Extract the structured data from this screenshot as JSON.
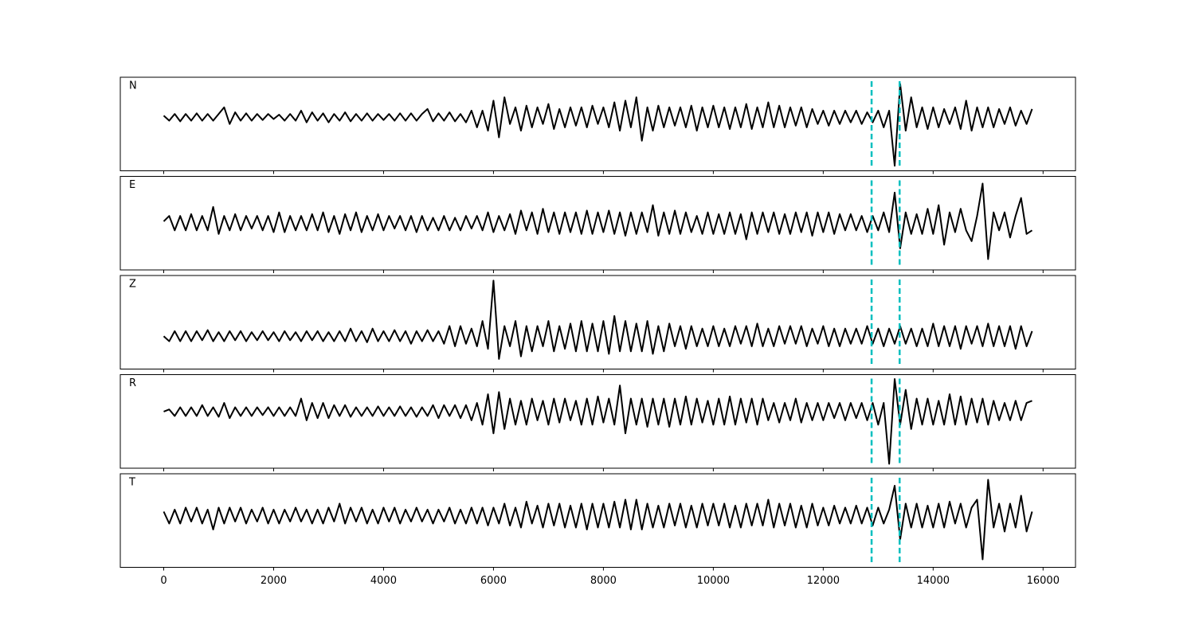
{
  "chart_data": {
    "type": "line",
    "x": [
      0,
      100,
      200,
      300,
      400,
      500,
      600,
      700,
      800,
      900,
      1000,
      1100,
      1200,
      1300,
      1400,
      1500,
      1600,
      1700,
      1800,
      1900,
      2000,
      2100,
      2200,
      2300,
      2400,
      2500,
      2600,
      2700,
      2800,
      2900,
      3000,
      3100,
      3200,
      3300,
      3400,
      3500,
      3600,
      3700,
      3800,
      3900,
      4000,
      4100,
      4200,
      4300,
      4400,
      4500,
      4600,
      4700,
      4800,
      4900,
      5000,
      5100,
      5200,
      5300,
      5400,
      5500,
      5600,
      5700,
      5800,
      5900,
      6000,
      6100,
      6200,
      6300,
      6400,
      6500,
      6600,
      6700,
      6800,
      6900,
      7000,
      7100,
      7200,
      7300,
      7400,
      7500,
      7600,
      7700,
      7800,
      7900,
      8000,
      8100,
      8200,
      8300,
      8400,
      8500,
      8600,
      8700,
      8800,
      8900,
      9000,
      9100,
      9200,
      9300,
      9400,
      9500,
      9600,
      9700,
      9800,
      9900,
      10000,
      10100,
      10200,
      10300,
      10400,
      10500,
      10600,
      10700,
      10800,
      10900,
      11000,
      11100,
      11200,
      11300,
      11400,
      11500,
      11600,
      11700,
      11800,
      11900,
      12000,
      12100,
      12200,
      12300,
      12400,
      12500,
      12600,
      12700,
      12800,
      12900,
      13000,
      13100,
      13200,
      13300,
      13400,
      13500,
      13600,
      13700,
      13800,
      13900,
      14000,
      14100,
      14200,
      14300,
      14400,
      14500,
      14600,
      14700,
      14800,
      14900,
      15000,
      15100,
      15200,
      15300,
      15400,
      15500,
      15600,
      15700,
      15800
    ],
    "xlim": [
      -790,
      16590
    ],
    "xticks": [
      0,
      2000,
      4000,
      6000,
      8000,
      10000,
      12000,
      14000,
      16000
    ],
    "vlines": [
      12880,
      13390
    ],
    "vline_color": "#00bfbf",
    "series": [
      {
        "name": "N",
        "color": "#000000",
        "ylim": [
          -1.6,
          1.2
        ],
        "values": [
          0.05,
          -0.1,
          0.1,
          -0.12,
          0.1,
          -0.1,
          0.12,
          -0.1,
          0.1,
          -0.1,
          0.1,
          0.3,
          -0.2,
          0.15,
          -0.1,
          0.12,
          -0.1,
          0.1,
          -0.08,
          0.1,
          -0.05,
          0.08,
          -0.1,
          0.1,
          -0.1,
          0.2,
          -0.15,
          0.15,
          -0.1,
          0.12,
          -0.15,
          0.1,
          -0.1,
          0.15,
          -0.12,
          0.1,
          -0.1,
          0.12,
          -0.1,
          0.1,
          -0.08,
          0.1,
          -0.1,
          0.12,
          -0.1,
          0.12,
          -0.1,
          0.1,
          0.25,
          -0.12,
          0.12,
          -0.1,
          0.15,
          -0.12,
          0.1,
          -0.15,
          0.2,
          -0.3,
          0.2,
          -0.4,
          0.5,
          -0.6,
          0.6,
          -0.2,
          0.3,
          -0.4,
          0.35,
          -0.3,
          0.3,
          -0.2,
          0.4,
          -0.35,
          0.25,
          -0.3,
          0.3,
          -0.25,
          0.3,
          -0.3,
          0.35,
          -0.2,
          0.3,
          -0.3,
          0.45,
          -0.4,
          0.5,
          -0.3,
          0.6,
          -0.7,
          0.3,
          -0.4,
          0.35,
          -0.3,
          0.3,
          -0.25,
          0.3,
          -0.3,
          0.35,
          -0.4,
          0.3,
          -0.3,
          0.35,
          -0.3,
          0.3,
          -0.35,
          0.3,
          -0.3,
          0.4,
          -0.35,
          0.3,
          -0.3,
          0.45,
          -0.3,
          0.35,
          -0.3,
          0.3,
          -0.25,
          0.3,
          -0.3,
          0.25,
          -0.2,
          0.2,
          -0.25,
          0.2,
          -0.2,
          0.2,
          -0.15,
          0.2,
          -0.2,
          0.15,
          -0.15,
          0.2,
          -0.3,
          0.2,
          -1.45,
          1.0,
          -0.4,
          0.6,
          -0.3,
          0.3,
          -0.35,
          0.3,
          -0.3,
          0.25,
          -0.2,
          0.3,
          -0.35,
          0.5,
          -0.4,
          0.3,
          -0.3,
          0.3,
          -0.3,
          0.25,
          -0.2,
          0.3,
          -0.25,
          0.2,
          -0.2,
          0.25
        ]
      },
      {
        "name": "E",
        "color": "#000000",
        "ylim": [
          -1.3,
          1.3
        ],
        "values": [
          0.05,
          0.2,
          -0.2,
          0.2,
          -0.2,
          0.25,
          -0.2,
          0.2,
          -0.2,
          0.45,
          -0.3,
          0.2,
          -0.2,
          0.25,
          -0.2,
          0.2,
          -0.15,
          0.2,
          -0.2,
          0.2,
          -0.25,
          0.3,
          -0.25,
          0.2,
          -0.2,
          0.2,
          -0.2,
          0.25,
          -0.2,
          0.3,
          -0.25,
          0.2,
          -0.3,
          0.25,
          -0.2,
          0.3,
          -0.25,
          0.2,
          -0.2,
          0.25,
          -0.2,
          0.2,
          -0.15,
          0.2,
          -0.2,
          0.2,
          -0.25,
          0.2,
          -0.2,
          0.15,
          -0.2,
          0.2,
          -0.2,
          0.15,
          -0.2,
          0.2,
          -0.15,
          0.2,
          -0.2,
          0.3,
          -0.25,
          0.2,
          -0.2,
          0.25,
          -0.3,
          0.35,
          -0.2,
          0.3,
          -0.3,
          0.4,
          -0.25,
          0.3,
          -0.3,
          0.3,
          -0.25,
          0.3,
          -0.3,
          0.35,
          -0.3,
          0.3,
          -0.25,
          0.35,
          -0.3,
          0.3,
          -0.35,
          0.3,
          -0.3,
          0.3,
          -0.25,
          0.5,
          -0.35,
          0.3,
          -0.3,
          0.35,
          -0.3,
          0.3,
          -0.25,
          0.2,
          -0.3,
          0.3,
          -0.3,
          0.25,
          -0.3,
          0.3,
          -0.3,
          0.25,
          -0.45,
          0.3,
          -0.3,
          0.3,
          -0.25,
          0.3,
          -0.3,
          0.25,
          -0.3,
          0.3,
          -0.25,
          0.3,
          -0.35,
          0.3,
          -0.25,
          0.3,
          -0.3,
          0.25,
          -0.2,
          0.25,
          -0.2,
          0.2,
          -0.25,
          0.2,
          -0.2,
          0.3,
          -0.25,
          0.85,
          -0.7,
          0.3,
          -0.3,
          0.25,
          -0.3,
          0.4,
          -0.3,
          0.5,
          -0.6,
          0.3,
          -0.25,
          0.4,
          -0.2,
          -0.5,
          0.2,
          1.1,
          -1.0,
          0.3,
          -0.2,
          0.3,
          -0.4,
          0.2,
          0.7,
          -0.3,
          -0.2
        ]
      },
      {
        "name": "Z",
        "color": "#000000",
        "ylim": [
          -0.65,
          1.2
        ],
        "values": [
          0.0,
          -0.1,
          0.1,
          -0.1,
          0.1,
          -0.1,
          0.1,
          -0.08,
          0.12,
          -0.1,
          0.08,
          -0.1,
          0.1,
          -0.08,
          0.1,
          -0.1,
          0.08,
          -0.08,
          0.1,
          -0.08,
          0.08,
          -0.1,
          0.1,
          -0.08,
          0.08,
          -0.1,
          0.1,
          -0.08,
          0.1,
          -0.1,
          0.08,
          -0.1,
          0.1,
          -0.1,
          0.15,
          -0.1,
          0.1,
          -0.12,
          0.15,
          -0.1,
          0.1,
          -0.1,
          0.12,
          -0.1,
          0.1,
          -0.15,
          0.1,
          -0.1,
          0.12,
          -0.1,
          0.1,
          -0.15,
          0.2,
          -0.2,
          0.2,
          -0.15,
          0.15,
          -0.2,
          0.3,
          -0.25,
          1.1,
          -0.45,
          0.2,
          -0.2,
          0.3,
          -0.4,
          0.2,
          -0.3,
          0.2,
          -0.2,
          0.3,
          -0.3,
          0.2,
          -0.25,
          0.25,
          -0.3,
          0.3,
          -0.3,
          0.25,
          -0.3,
          0.3,
          -0.35,
          0.4,
          -0.3,
          0.3,
          -0.3,
          0.25,
          -0.3,
          0.3,
          -0.35,
          0.2,
          -0.3,
          0.25,
          -0.2,
          0.2,
          -0.25,
          0.2,
          -0.2,
          0.15,
          -0.2,
          0.2,
          -0.2,
          0.15,
          -0.2,
          0.2,
          -0.15,
          0.2,
          -0.2,
          0.25,
          -0.2,
          0.15,
          -0.2,
          0.2,
          -0.15,
          0.2,
          -0.15,
          0.2,
          -0.2,
          0.15,
          -0.15,
          0.2,
          -0.2,
          0.15,
          -0.2,
          0.15,
          -0.15,
          0.15,
          -0.15,
          0.2,
          -0.15,
          0.15,
          -0.2,
          0.15,
          -0.15,
          0.2,
          -0.15,
          0.15,
          -0.2,
          0.15,
          -0.2,
          0.25,
          -0.2,
          0.2,
          -0.2,
          0.2,
          -0.25,
          0.2,
          -0.15,
          0.2,
          -0.2,
          0.25,
          -0.2,
          0.2,
          -0.2,
          0.2,
          -0.25,
          0.2,
          -0.2,
          0.1
        ]
      },
      {
        "name": "R",
        "color": "#000000",
        "ylim": [
          -1.3,
          0.85
        ],
        "values": [
          0.0,
          0.05,
          -0.1,
          0.1,
          -0.1,
          0.1,
          -0.1,
          0.15,
          -0.1,
          0.1,
          -0.12,
          0.2,
          -0.15,
          0.1,
          -0.1,
          0.1,
          -0.1,
          0.1,
          -0.08,
          0.1,
          -0.1,
          0.1,
          -0.1,
          0.1,
          -0.1,
          0.3,
          -0.2,
          0.2,
          -0.15,
          0.2,
          -0.15,
          0.15,
          -0.1,
          0.15,
          -0.12,
          0.1,
          -0.1,
          0.1,
          -0.1,
          0.12,
          -0.1,
          0.1,
          -0.1,
          0.12,
          -0.1,
          0.1,
          -0.12,
          0.1,
          -0.1,
          0.15,
          -0.15,
          0.15,
          -0.1,
          0.15,
          -0.15,
          0.15,
          -0.2,
          0.2,
          -0.3,
          0.4,
          -0.5,
          0.45,
          -0.4,
          0.3,
          -0.3,
          0.25,
          -0.3,
          0.3,
          -0.2,
          0.25,
          -0.3,
          0.3,
          -0.25,
          0.3,
          -0.2,
          0.25,
          -0.3,
          0.3,
          -0.3,
          0.35,
          -0.25,
          0.3,
          -0.3,
          0.6,
          -0.5,
          0.3,
          -0.3,
          0.3,
          -0.35,
          0.3,
          -0.3,
          0.3,
          -0.35,
          0.3,
          -0.3,
          0.35,
          -0.3,
          0.3,
          -0.25,
          0.25,
          -0.3,
          0.3,
          -0.3,
          0.35,
          -0.3,
          0.3,
          -0.25,
          0.3,
          -0.3,
          0.3,
          -0.2,
          0.2,
          -0.25,
          0.2,
          -0.2,
          0.3,
          -0.25,
          0.2,
          -0.2,
          0.2,
          -0.2,
          0.2,
          -0.15,
          0.2,
          -0.2,
          0.2,
          -0.15,
          0.2,
          -0.2,
          0.2,
          -0.3,
          0.2,
          -1.2,
          0.75,
          -0.3,
          0.5,
          -0.4,
          0.3,
          -0.3,
          0.3,
          -0.3,
          0.25,
          -0.3,
          0.4,
          -0.3,
          0.35,
          -0.3,
          0.3,
          -0.25,
          0.3,
          -0.3,
          0.25,
          -0.2,
          0.2,
          -0.2,
          0.25,
          -0.2,
          0.2,
          0.25
        ]
      },
      {
        "name": "T",
        "color": "#000000",
        "ylim": [
          -1.3,
          1.05
        ],
        "values": [
          0.1,
          -0.2,
          0.15,
          -0.2,
          0.2,
          -0.15,
          0.2,
          -0.2,
          0.15,
          -0.35,
          0.2,
          -0.2,
          0.2,
          -0.15,
          0.2,
          -0.2,
          0.15,
          -0.15,
          0.2,
          -0.2,
          0.15,
          -0.2,
          0.15,
          -0.15,
          0.2,
          -0.15,
          0.15,
          -0.2,
          0.15,
          -0.2,
          0.2,
          -0.15,
          0.3,
          -0.2,
          0.2,
          -0.15,
          0.2,
          -0.2,
          0.15,
          -0.2,
          0.2,
          -0.15,
          0.2,
          -0.2,
          0.15,
          -0.15,
          0.2,
          -0.15,
          0.15,
          -0.2,
          0.15,
          -0.15,
          0.2,
          -0.2,
          0.15,
          -0.2,
          0.2,
          -0.2,
          0.2,
          -0.25,
          0.2,
          -0.2,
          0.3,
          -0.25,
          0.2,
          -0.3,
          0.35,
          -0.2,
          0.25,
          -0.3,
          0.3,
          -0.25,
          0.3,
          -0.3,
          0.25,
          -0.3,
          0.3,
          -0.35,
          0.3,
          -0.3,
          0.3,
          -0.3,
          0.35,
          -0.3,
          0.4,
          -0.35,
          0.4,
          -0.35,
          0.3,
          -0.3,
          0.25,
          -0.3,
          0.3,
          -0.25,
          0.3,
          -0.3,
          0.25,
          -0.3,
          0.3,
          -0.25,
          0.3,
          -0.25,
          0.3,
          -0.3,
          0.25,
          -0.3,
          0.3,
          -0.25,
          0.3,
          -0.25,
          0.4,
          -0.3,
          0.3,
          -0.25,
          0.3,
          -0.3,
          0.25,
          -0.3,
          0.3,
          -0.25,
          0.2,
          -0.25,
          0.25,
          -0.2,
          0.2,
          -0.2,
          0.25,
          -0.2,
          0.2,
          -0.25,
          0.2,
          -0.2,
          0.15,
          0.75,
          -0.6,
          0.3,
          -0.3,
          0.3,
          -0.3,
          0.25,
          -0.3,
          0.3,
          -0.3,
          0.35,
          -0.2,
          0.3,
          -0.3,
          0.2,
          0.4,
          -1.1,
          0.9,
          -0.3,
          0.3,
          -0.4,
          0.3,
          -0.3,
          0.5,
          -0.4,
          0.1
        ]
      }
    ]
  }
}
